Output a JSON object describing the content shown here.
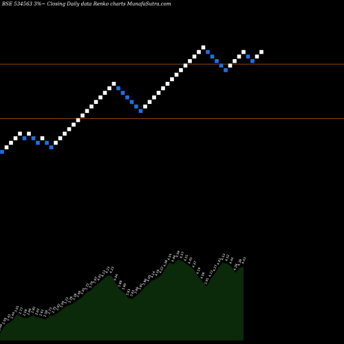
{
  "header": {
    "title": "BSE 534563 3%~  Closing Daily data  Renko  charts MunafaSutra.com"
  },
  "colors": {
    "background": "#000000",
    "up_brick": "#ffffff",
    "down_brick": "#1e6fe6",
    "line": "#8b4513",
    "area_fill": "#0a2a0a",
    "area_stroke": "#0a0a0a",
    "text": "#ffffff"
  },
  "chart_data": {
    "type": "renko",
    "bricks": [
      "down",
      "up",
      "up",
      "up",
      "up",
      "down",
      "up",
      "down",
      "down",
      "up",
      "down",
      "down",
      "up",
      "up",
      "up",
      "up",
      "up",
      "up",
      "up",
      "up",
      "up",
      "up",
      "up",
      "up",
      "up",
      "up",
      "down",
      "down",
      "down",
      "down",
      "down",
      "down",
      "up",
      "up",
      "up",
      "up",
      "up",
      "up",
      "up",
      "up",
      "up",
      "up",
      "up",
      "up",
      "up",
      "up",
      "down",
      "down",
      "down",
      "down",
      "down",
      "up",
      "up",
      "up",
      "up",
      "down",
      "down",
      "up",
      "up"
    ],
    "start_level": 0,
    "reference_lines": [
      19,
      7
    ],
    "y_range": [
      -2,
      40
    ],
    "volume": {
      "ylim": [
        0,
        150
      ],
      "labels": [
        "1.09",
        "2.04",
        "2.41",
        "2.44",
        "3.01",
        "2.77",
        "2.59",
        "2.66",
        "2.82",
        "2.65",
        "2.61",
        "2.58",
        "2.73",
        "2.75",
        "2.92",
        "3.04",
        "3.23",
        "3.26",
        "3.38",
        "3.46",
        "3.55",
        "3.72",
        "3.79",
        "3.97",
        "4.01",
        "4.13",
        "4.23",
        "4.23",
        "4.04",
        "3.88",
        "3.80",
        "3.63",
        "3.61",
        "3.69",
        "3.81",
        "3.96",
        "4.05",
        "4.14",
        "4.16",
        "4.22",
        "4.38",
        "4.54",
        "4.49",
        "4.59",
        "4.57",
        "4.51",
        "4.45",
        "4.37",
        "4.19",
        "4.06",
        "3.91",
        "4.12",
        "4.27",
        "4.43",
        "4.53",
        "4.52",
        "4.44",
        "4.28",
        "4.38",
        "4.43"
      ],
      "values": [
        8,
        15,
        19,
        21,
        28,
        26,
        24,
        25,
        27,
        25,
        24,
        23,
        26,
        27,
        30,
        33,
        37,
        38,
        41,
        44,
        47,
        52,
        54,
        59,
        62,
        66,
        70,
        70,
        62,
        55,
        52,
        46,
        45,
        48,
        52,
        57,
        61,
        65,
        67,
        70,
        77,
        84,
        82,
        87,
        86,
        83,
        80,
        76,
        69,
        64,
        58,
        66,
        72,
        79,
        84,
        83,
        80,
        73,
        78,
        80
      ]
    }
  }
}
